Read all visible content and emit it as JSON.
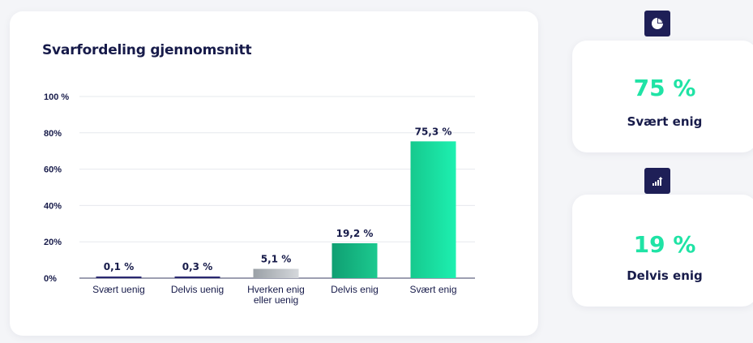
{
  "chart_title": "Svarfordeling gjennomsnitt",
  "chart_data": {
    "type": "bar",
    "title": "Svarfordeling gjennomsnitt",
    "xlabel": "",
    "ylabel": "",
    "ylim": [
      0,
      100
    ],
    "yticks": [
      0,
      20,
      40,
      60,
      80,
      100
    ],
    "ytick_labels": [
      "0%",
      "20%",
      "40%",
      "60%",
      "80%",
      "100 %"
    ],
    "grid": true,
    "categories": [
      [
        "Svært uenig"
      ],
      [
        "Delvis uenig"
      ],
      [
        "Hverken enig",
        "eller uenig"
      ],
      [
        "Delvis enig"
      ],
      [
        "Svært enig"
      ]
    ],
    "values": [
      0.1,
      0.3,
      5.1,
      19.2,
      75.3
    ],
    "value_labels": [
      "0,1 %",
      "0,3 %",
      "5,1 %",
      "19,2 %",
      "75,3 %"
    ],
    "bar_colors": [
      [
        "#2a2870",
        "#2a2870"
      ],
      [
        "#2a2870",
        "#2a2870"
      ],
      [
        "#9aa0a6",
        "#d5d8dc"
      ],
      [
        "#0f9f72",
        "#1cc98f"
      ],
      [
        "#16c98e",
        "#1df0b0"
      ]
    ]
  },
  "stats": [
    {
      "icon": "pie-chart-icon",
      "value": "75 %",
      "label": "Svært enig"
    },
    {
      "icon": "bar-trend-icon",
      "value": "19 %",
      "label": "Delvis enig"
    }
  ],
  "colors": {
    "navy": "#171b4a",
    "accent": "#1fe3a5"
  }
}
